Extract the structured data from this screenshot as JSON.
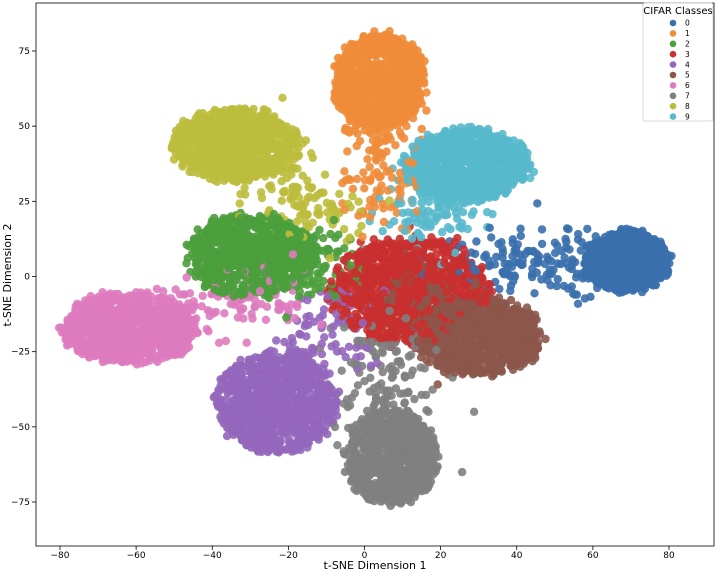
{
  "chart_data": {
    "type": "scatter",
    "title": "",
    "xlabel": "t-SNE Dimension 1",
    "ylabel": "t-SNE Dimension 2",
    "xlim": [
      -87,
      92
    ],
    "ylim": [
      -89,
      91
    ],
    "xticks": [
      -80,
      -60,
      -40,
      -20,
      0,
      20,
      40,
      60,
      80
    ],
    "yticks": [
      -75,
      -50,
      -25,
      0,
      25,
      50,
      75
    ],
    "grid": false,
    "legend": {
      "title": "CIFAR Classes",
      "placement": "top-right"
    },
    "series": [
      {
        "name": "0",
        "color": "#3a6fad",
        "cluster_center": [
          69,
          5
        ],
        "spread": [
          12,
          11
        ],
        "approx_points": 1000
      },
      {
        "name": "1",
        "color": "#f08c3a",
        "cluster_center": [
          4,
          65
        ],
        "spread": [
          13,
          17
        ],
        "approx_points": 1000
      },
      {
        "name": "2",
        "color": "#4b9e3c",
        "cluster_center": [
          -30,
          7
        ],
        "spread": [
          18,
          15
        ],
        "approx_points": 1000
      },
      {
        "name": "3",
        "color": "#c9302f",
        "cluster_center": [
          12,
          -5
        ],
        "spread": [
          22,
          20
        ],
        "approx_points": 1000
      },
      {
        "name": "4",
        "color": "#9467bd",
        "cluster_center": [
          -23,
          -42
        ],
        "spread": [
          17,
          18
        ],
        "approx_points": 1000
      },
      {
        "name": "5",
        "color": "#8c564b",
        "cluster_center": [
          30,
          -20
        ],
        "spread": [
          18,
          14
        ],
        "approx_points": 1000
      },
      {
        "name": "6",
        "color": "#de7bbf",
        "cluster_center": [
          -62,
          -17
        ],
        "spread": [
          19,
          13
        ],
        "approx_points": 1000
      },
      {
        "name": "7",
        "color": "#7f7f7f",
        "cluster_center": [
          7,
          -60
        ],
        "spread": [
          13,
          17
        ],
        "approx_points": 1000
      },
      {
        "name": "8",
        "color": "#bcbc3d",
        "cluster_center": [
          -34,
          44
        ],
        "spread": [
          18,
          13
        ],
        "approx_points": 1000
      },
      {
        "name": "9",
        "color": "#58b9cc",
        "cluster_center": [
          27,
          37
        ],
        "spread": [
          18,
          13
        ],
        "approx_points": 1000
      }
    ]
  }
}
